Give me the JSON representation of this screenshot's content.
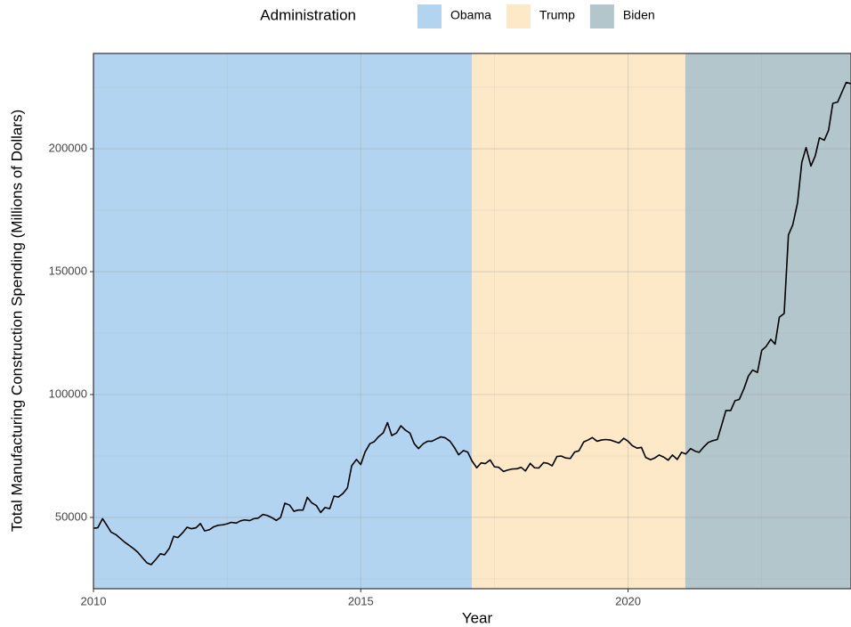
{
  "chart_data": {
    "type": "line",
    "legend_title": "Administration",
    "legend_position": "top",
    "periods": [
      {
        "name": "Obama",
        "start": 2010,
        "end": 2017.08,
        "color": "#b3d4f0"
      },
      {
        "name": "Trump",
        "start": 2017.08,
        "end": 2021.07,
        "color": "#fde8c7"
      },
      {
        "name": "Biden",
        "start": 2021.07,
        "end": 2024.17,
        "color": "#b3c6cc"
      }
    ],
    "xlabel": "Year",
    "ylabel": "Total Manufacturing Construction Spending (Millions of Dollars)",
    "xlim": [
      2010,
      2024.17
    ],
    "ylim": [
      21000,
      238800
    ],
    "xticks": [
      2010,
      2015,
      2020
    ],
    "yticks": [
      50000,
      100000,
      150000,
      200000
    ],
    "xminorticks": [
      2012.5,
      2017.5,
      2022.5
    ],
    "yminorticks": [
      25000,
      75000,
      125000,
      175000,
      225000
    ],
    "grid": true,
    "x": [
      2010,
      2010.08,
      2010.17,
      2010.25,
      2010.33,
      2010.42,
      2010.5,
      2010.58,
      2010.67,
      2010.75,
      2010.83,
      2010.92,
      2011,
      2011.08,
      2011.17,
      2011.25,
      2011.33,
      2011.42,
      2011.5,
      2011.58,
      2011.67,
      2011.75,
      2011.83,
      2011.92,
      2012,
      2012.08,
      2012.17,
      2012.25,
      2012.33,
      2012.42,
      2012.5,
      2012.58,
      2012.67,
      2012.75,
      2012.83,
      2012.92,
      2013,
      2013.08,
      2013.17,
      2013.25,
      2013.33,
      2013.42,
      2013.5,
      2013.58,
      2013.67,
      2013.75,
      2013.83,
      2013.92,
      2014,
      2014.08,
      2014.17,
      2014.25,
      2014.33,
      2014.42,
      2014.5,
      2014.58,
      2014.67,
      2014.75,
      2014.83,
      2014.92,
      2015,
      2015.08,
      2015.17,
      2015.25,
      2015.33,
      2015.42,
      2015.5,
      2015.58,
      2015.67,
      2015.75,
      2015.83,
      2015.92,
      2016,
      2016.08,
      2016.17,
      2016.25,
      2016.33,
      2016.42,
      2016.5,
      2016.58,
      2016.67,
      2016.75,
      2016.83,
      2016.92,
      2017,
      2017.08,
      2017.17,
      2017.25,
      2017.33,
      2017.42,
      2017.5,
      2017.58,
      2017.67,
      2017.75,
      2017.83,
      2017.92,
      2018,
      2018.08,
      2018.17,
      2018.25,
      2018.33,
      2018.42,
      2018.5,
      2018.58,
      2018.67,
      2018.75,
      2018.83,
      2018.92,
      2019,
      2019.08,
      2019.17,
      2019.25,
      2019.33,
      2019.42,
      2019.5,
      2019.58,
      2019.67,
      2019.75,
      2019.83,
      2019.92,
      2020,
      2020.08,
      2020.17,
      2020.25,
      2020.33,
      2020.42,
      2020.5,
      2020.58,
      2020.67,
      2020.75,
      2020.83,
      2020.92,
      2021,
      2021.08,
      2021.17,
      2021.25,
      2021.33,
      2021.42,
      2021.5,
      2021.58,
      2021.67,
      2021.75,
      2021.83,
      2021.92,
      2022,
      2022.08,
      2022.17,
      2022.25,
      2022.33,
      2022.42,
      2022.5,
      2022.58,
      2022.67,
      2022.75,
      2022.83,
      2022.92,
      2023,
      2023.08,
      2023.17,
      2023.25,
      2023.33,
      2023.42,
      2023.5,
      2023.58,
      2023.67,
      2023.75,
      2023.83,
      2023.92,
      2024,
      2024.08,
      2024.17
    ],
    "series": [
      {
        "color": "#000000",
        "values": [
          45600,
          45800,
          49500,
          46800,
          44000,
          43000,
          41500,
          40000,
          38600,
          37300,
          35800,
          33500,
          31500,
          30800,
          33000,
          35200,
          34800,
          37500,
          42300,
          41800,
          43800,
          46000,
          45400,
          45800,
          47500,
          44500,
          45000,
          46200,
          46800,
          47000,
          47400,
          48000,
          47700,
          48600,
          49000,
          48700,
          49500,
          49700,
          51200,
          50800,
          50000,
          48800,
          50000,
          55800,
          55000,
          52500,
          53000,
          53000,
          58200,
          56000,
          54800,
          52000,
          54000,
          53600,
          58700,
          58300,
          59800,
          62000,
          71000,
          73600,
          71500,
          76600,
          80000,
          80800,
          82800,
          84400,
          88600,
          83300,
          84400,
          87300,
          85600,
          84300,
          80000,
          78000,
          80000,
          81000,
          81000,
          82000,
          82800,
          82400,
          81000,
          78500,
          75500,
          77200,
          76600,
          73000,
          70200,
          72200,
          71900,
          73400,
          70600,
          70400,
          68700,
          69300,
          69700,
          69800,
          70400,
          68900,
          72000,
          70200,
          70100,
          72300,
          72000,
          71000,
          74800,
          75000,
          74200,
          74000,
          76600,
          77100,
          80700,
          81500,
          82500,
          81000,
          81500,
          81700,
          81500,
          80900,
          80300,
          82200,
          81000,
          79200,
          78200,
          78500,
          74400,
          73500,
          74200,
          75400,
          74500,
          73300,
          75400,
          73600,
          76500,
          75800,
          78000,
          77000,
          76500,
          78800,
          80500,
          81200,
          81700,
          87500,
          93500,
          93500,
          97500,
          98000,
          102500,
          107500,
          110000,
          109000,
          118000,
          119500,
          122500,
          120500,
          131500,
          133000,
          165000,
          169000,
          178000,
          194500,
          200500,
          193000,
          197000,
          204500,
          203500,
          207500,
          218500,
          219000,
          223000,
          227000,
          226500
        ]
      }
    ]
  }
}
